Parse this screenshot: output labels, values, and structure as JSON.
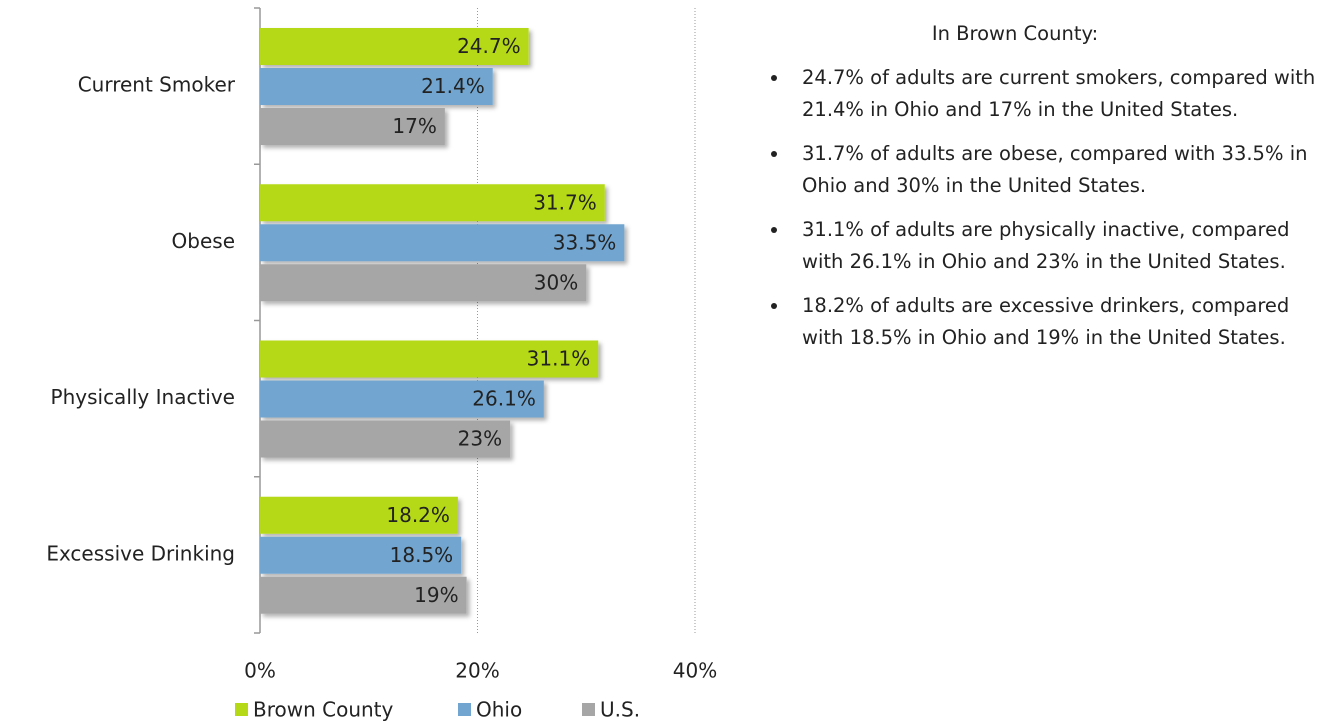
{
  "chart_data": {
    "type": "hbar",
    "categories": [
      "Current Smoker",
      "Obese",
      "Physically Inactive",
      "Excessive Drinking"
    ],
    "series": [
      {
        "name": "Brown County",
        "color": "#b5d916",
        "values": [
          24.7,
          31.7,
          31.1,
          18.2
        ],
        "value_labels": [
          "24.7%",
          "31.7%",
          "31.1%",
          "18.2%"
        ]
      },
      {
        "name": "Ohio",
        "color": "#72a6d0",
        "values": [
          21.4,
          33.5,
          26.1,
          18.5
        ],
        "value_labels": [
          "21.4%",
          "33.5%",
          "26.1%",
          "18.5%"
        ]
      },
      {
        "name": "U.S.",
        "color": "#a6a6a6",
        "values": [
          17,
          30,
          23,
          19
        ],
        "value_labels": [
          "17%",
          "30%",
          "23%",
          "19%"
        ]
      }
    ],
    "xlim": [
      0,
      40
    ],
    "xticks": [
      {
        "value": 0,
        "label": "0%"
      },
      {
        "value": 20,
        "label": "20%"
      },
      {
        "value": 40,
        "label": "40%"
      }
    ],
    "grid": true,
    "legend": "bottom"
  },
  "panel": {
    "title": "In Brown County:",
    "bullets": [
      "24.7% of adults are current smokers, compared with 21.4% in Ohio and 17% in the United States.",
      "31.7% of adults are obese, compared with 33.5% in Ohio and 30% in the United States.",
      "31.1% of adults are physically inactive, compared with 26.1% in Ohio and 23% in the United States.",
      "18.2% of adults are excessive drinkers, compared with 18.5% in Ohio and 19% in the United States."
    ]
  }
}
